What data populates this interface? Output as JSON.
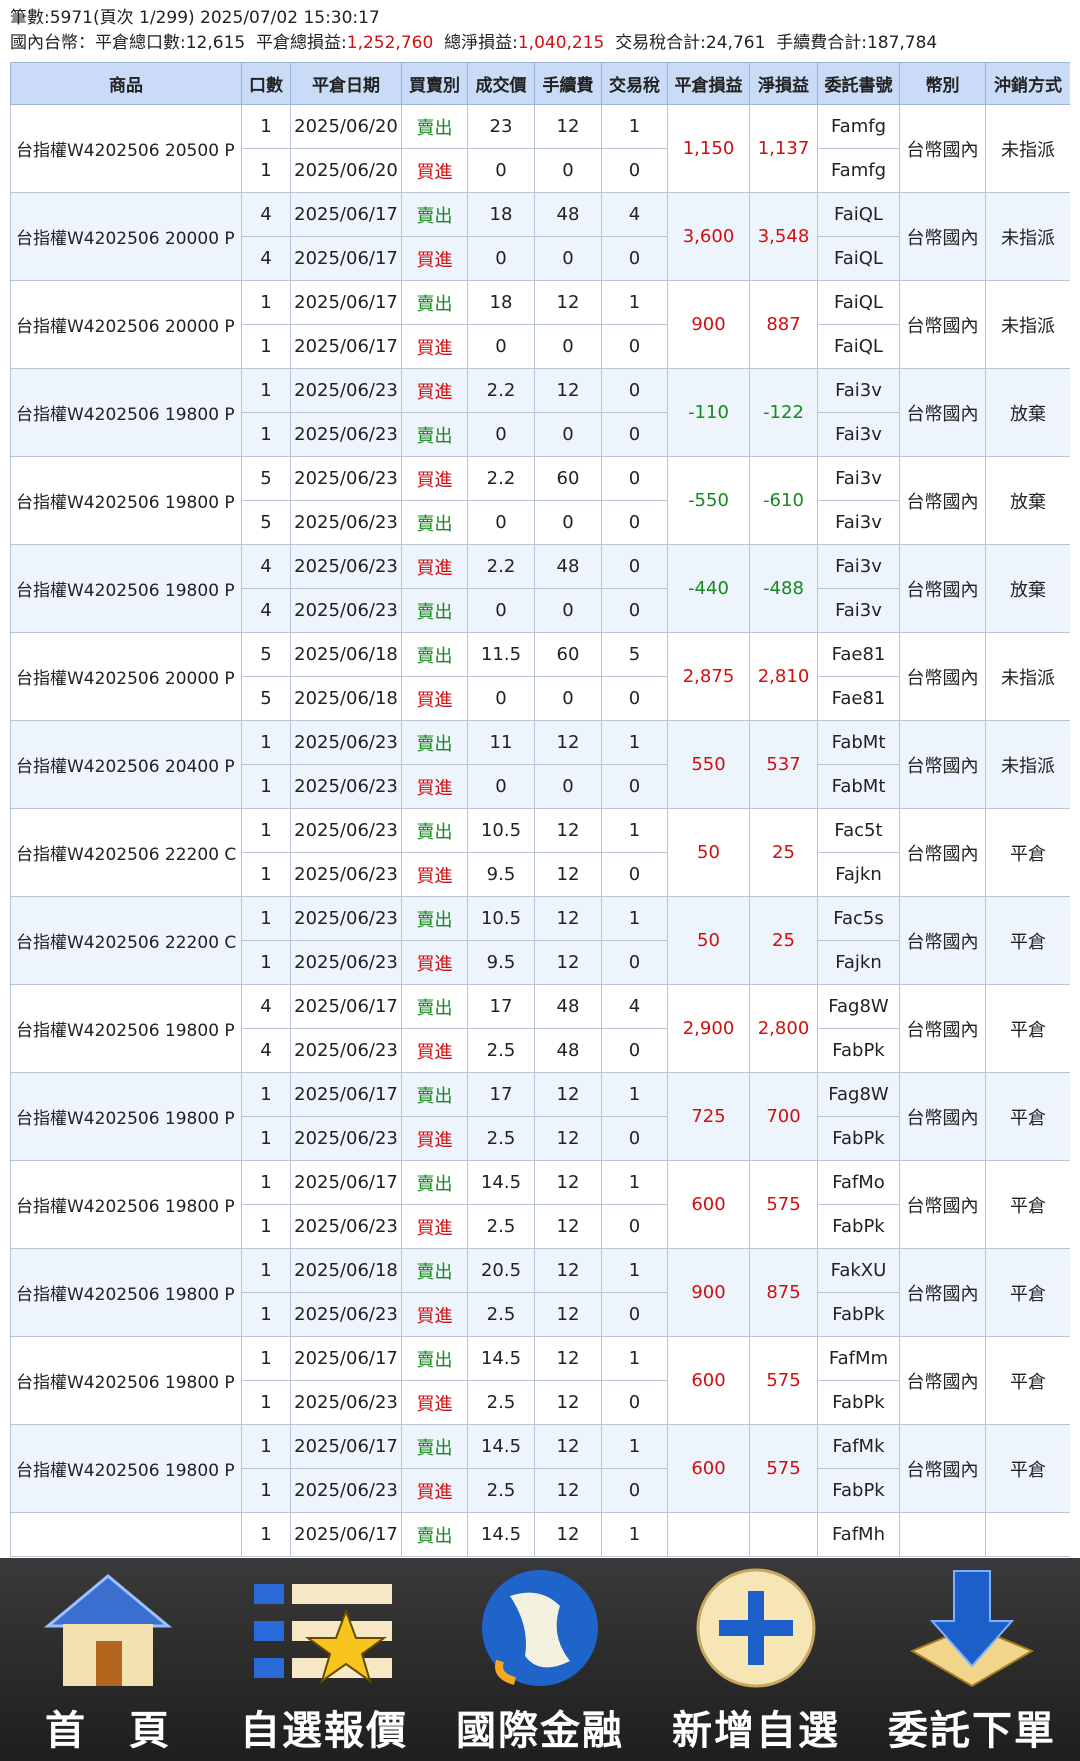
{
  "header": {
    "line1": "筆數:5971(頁次 1/299) 2025/07/02 15:30:17",
    "line2": [
      {
        "label": "國內台幣：平倉總口數:",
        "value": "12,615",
        "red": false
      },
      {
        "label": "平倉總損益:",
        "value": "1,252,760",
        "red": true
      },
      {
        "label": "總淨損益:",
        "value": "1,040,215",
        "red": true
      },
      {
        "label": "交易稅合計:",
        "value": "24,761",
        "red": false
      },
      {
        "label": "手續費合計:",
        "value": "187,784",
        "red": false
      }
    ]
  },
  "table": {
    "columns": [
      "商品",
      "口數",
      "平倉日期",
      "買賣別",
      "成交價",
      "手續費",
      "交易稅",
      "平倉損益",
      "淨損益",
      "委託書號",
      "幣別",
      "沖銷方式"
    ],
    "groups": [
      {
        "product": "台指權W4202506 20500 P",
        "pnl": "1,150",
        "net": "1,137",
        "currency": "台幣國內",
        "method": "未指派",
        "rows": [
          [
            1,
            "2025/06/20",
            "賣出",
            23,
            12,
            1,
            "Famfg"
          ],
          [
            1,
            "2025/06/20",
            "買進",
            0,
            0,
            0,
            "Famfg"
          ]
        ]
      },
      {
        "product": "台指權W4202506 20000 P",
        "pnl": "3,600",
        "net": "3,548",
        "currency": "台幣國內",
        "method": "未指派",
        "rows": [
          [
            4,
            "2025/06/17",
            "賣出",
            18,
            48,
            4,
            "FaiQL"
          ],
          [
            4,
            "2025/06/17",
            "買進",
            0,
            0,
            0,
            "FaiQL"
          ]
        ]
      },
      {
        "product": "台指權W4202506 20000 P",
        "pnl": "900",
        "net": "887",
        "currency": "台幣國內",
        "method": "未指派",
        "rows": [
          [
            1,
            "2025/06/17",
            "賣出",
            18,
            12,
            1,
            "FaiQL"
          ],
          [
            1,
            "2025/06/17",
            "買進",
            0,
            0,
            0,
            "FaiQL"
          ]
        ]
      },
      {
        "product": "台指權W4202506 19800 P",
        "pnl": "-110",
        "net": "-122",
        "currency": "台幣國內",
        "method": "放棄",
        "rows": [
          [
            1,
            "2025/06/23",
            "買進",
            2.2,
            12,
            0,
            "Fai3v"
          ],
          [
            1,
            "2025/06/23",
            "賣出",
            0,
            0,
            0,
            "Fai3v"
          ]
        ]
      },
      {
        "product": "台指權W4202506 19800 P",
        "pnl": "-550",
        "net": "-610",
        "currency": "台幣國內",
        "method": "放棄",
        "rows": [
          [
            5,
            "2025/06/23",
            "買進",
            2.2,
            60,
            0,
            "Fai3v"
          ],
          [
            5,
            "2025/06/23",
            "賣出",
            0,
            0,
            0,
            "Fai3v"
          ]
        ]
      },
      {
        "product": "台指權W4202506 19800 P",
        "pnl": "-440",
        "net": "-488",
        "currency": "台幣國內",
        "method": "放棄",
        "rows": [
          [
            4,
            "2025/06/23",
            "買進",
            2.2,
            48,
            0,
            "Fai3v"
          ],
          [
            4,
            "2025/06/23",
            "賣出",
            0,
            0,
            0,
            "Fai3v"
          ]
        ]
      },
      {
        "product": "台指權W4202506 20000 P",
        "pnl": "2,875",
        "net": "2,810",
        "currency": "台幣國內",
        "method": "未指派",
        "rows": [
          [
            5,
            "2025/06/18",
            "賣出",
            11.5,
            60,
            5,
            "Fae81"
          ],
          [
            5,
            "2025/06/18",
            "買進",
            0,
            0,
            0,
            "Fae81"
          ]
        ]
      },
      {
        "product": "台指權W4202506 20400 P",
        "pnl": "550",
        "net": "537",
        "currency": "台幣國內",
        "method": "未指派",
        "rows": [
          [
            1,
            "2025/06/23",
            "賣出",
            11,
            12,
            1,
            "FabMt"
          ],
          [
            1,
            "2025/06/23",
            "買進",
            0,
            0,
            0,
            "FabMt"
          ]
        ]
      },
      {
        "product": "台指權W4202506 22200 C",
        "pnl": "50",
        "net": "25",
        "currency": "台幣國內",
        "method": "平倉",
        "rows": [
          [
            1,
            "2025/06/23",
            "賣出",
            10.5,
            12,
            1,
            "Fac5t"
          ],
          [
            1,
            "2025/06/23",
            "買進",
            9.5,
            12,
            0,
            "Fajkn"
          ]
        ]
      },
      {
        "product": "台指權W4202506 22200 C",
        "pnl": "50",
        "net": "25",
        "currency": "台幣國內",
        "method": "平倉",
        "rows": [
          [
            1,
            "2025/06/23",
            "賣出",
            10.5,
            12,
            1,
            "Fac5s"
          ],
          [
            1,
            "2025/06/23",
            "買進",
            9.5,
            12,
            0,
            "Fajkn"
          ]
        ]
      },
      {
        "product": "台指權W4202506 19800 P",
        "pnl": "2,900",
        "net": "2,800",
        "currency": "台幣國內",
        "method": "平倉",
        "rows": [
          [
            4,
            "2025/06/17",
            "賣出",
            17,
            48,
            4,
            "Fag8W"
          ],
          [
            4,
            "2025/06/23",
            "買進",
            2.5,
            48,
            0,
            "FabPk"
          ]
        ]
      },
      {
        "product": "台指權W4202506 19800 P",
        "pnl": "725",
        "net": "700",
        "currency": "台幣國內",
        "method": "平倉",
        "rows": [
          [
            1,
            "2025/06/17",
            "賣出",
            17,
            12,
            1,
            "Fag8W"
          ],
          [
            1,
            "2025/06/23",
            "買進",
            2.5,
            12,
            0,
            "FabPk"
          ]
        ]
      },
      {
        "product": "台指權W4202506 19800 P",
        "pnl": "600",
        "net": "575",
        "currency": "台幣國內",
        "method": "平倉",
        "rows": [
          [
            1,
            "2025/06/17",
            "賣出",
            14.5,
            12,
            1,
            "FafMo"
          ],
          [
            1,
            "2025/06/23",
            "買進",
            2.5,
            12,
            0,
            "FabPk"
          ]
        ]
      },
      {
        "product": "台指權W4202506 19800 P",
        "pnl": "900",
        "net": "875",
        "currency": "台幣國內",
        "method": "平倉",
        "rows": [
          [
            1,
            "2025/06/18",
            "賣出",
            20.5,
            12,
            1,
            "FakXU"
          ],
          [
            1,
            "2025/06/23",
            "買進",
            2.5,
            12,
            0,
            "FabPk"
          ]
        ]
      },
      {
        "product": "台指權W4202506 19800 P",
        "pnl": "600",
        "net": "575",
        "currency": "台幣國內",
        "method": "平倉",
        "rows": [
          [
            1,
            "2025/06/17",
            "賣出",
            14.5,
            12,
            1,
            "FafMm"
          ],
          [
            1,
            "2025/06/23",
            "買進",
            2.5,
            12,
            0,
            "FabPk"
          ]
        ]
      },
      {
        "product": "台指權W4202506 19800 P",
        "pnl": "600",
        "net": "575",
        "currency": "台幣國內",
        "method": "平倉",
        "rows": [
          [
            1,
            "2025/06/17",
            "賣出",
            14.5,
            12,
            1,
            "FafMk"
          ],
          [
            1,
            "2025/06/23",
            "買進",
            2.5,
            12,
            0,
            "FabPk"
          ]
        ]
      }
    ],
    "partial_row": [
      1,
      "2025/06/17",
      "賣出",
      14.5,
      12,
      1,
      "FafMh"
    ]
  },
  "toolbar": [
    "首　頁",
    "自選報價",
    "國際金融",
    "新增自選",
    "委託下單"
  ]
}
